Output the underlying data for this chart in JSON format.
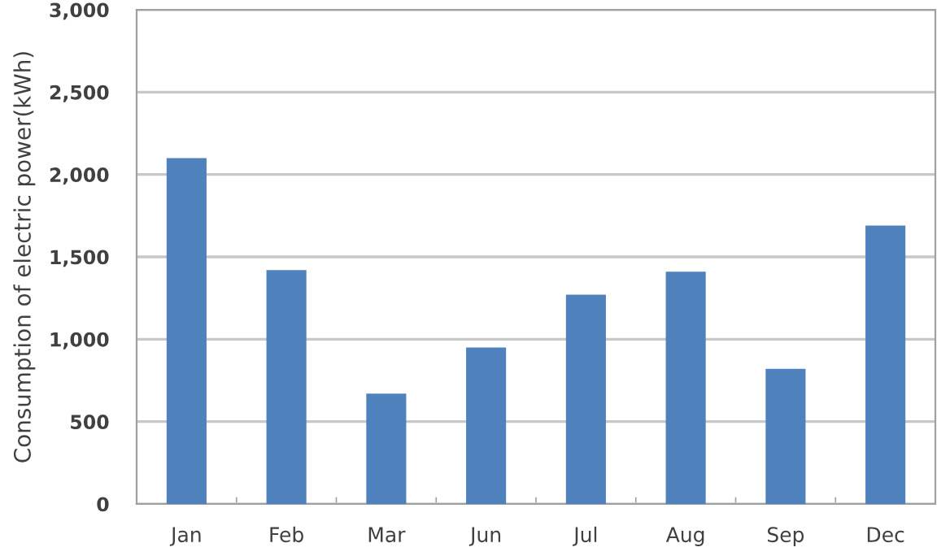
{
  "chart_data": {
    "type": "bar",
    "ylabel": "Consumption of electric power(kWh)",
    "categories": [
      "Jan",
      "Feb",
      "Mar",
      "Jun",
      "Jul",
      "Aug",
      "Sep",
      "Dec"
    ],
    "values": [
      2100,
      1420,
      670,
      950,
      1270,
      1410,
      820,
      1690
    ],
    "color": "#4f81bd",
    "ylim": [
      0,
      3000
    ],
    "yticks": [
      {
        "value": 0,
        "label": "0"
      },
      {
        "value": 500,
        "label": "500"
      },
      {
        "value": 1000,
        "label": "1,000"
      },
      {
        "value": 1500,
        "label": "1,500"
      },
      {
        "value": 2000,
        "label": "2,000"
      },
      {
        "value": 2500,
        "label": "2,500"
      },
      {
        "value": 3000,
        "label": "3,000"
      }
    ],
    "grid": "y",
    "legend": false
  }
}
